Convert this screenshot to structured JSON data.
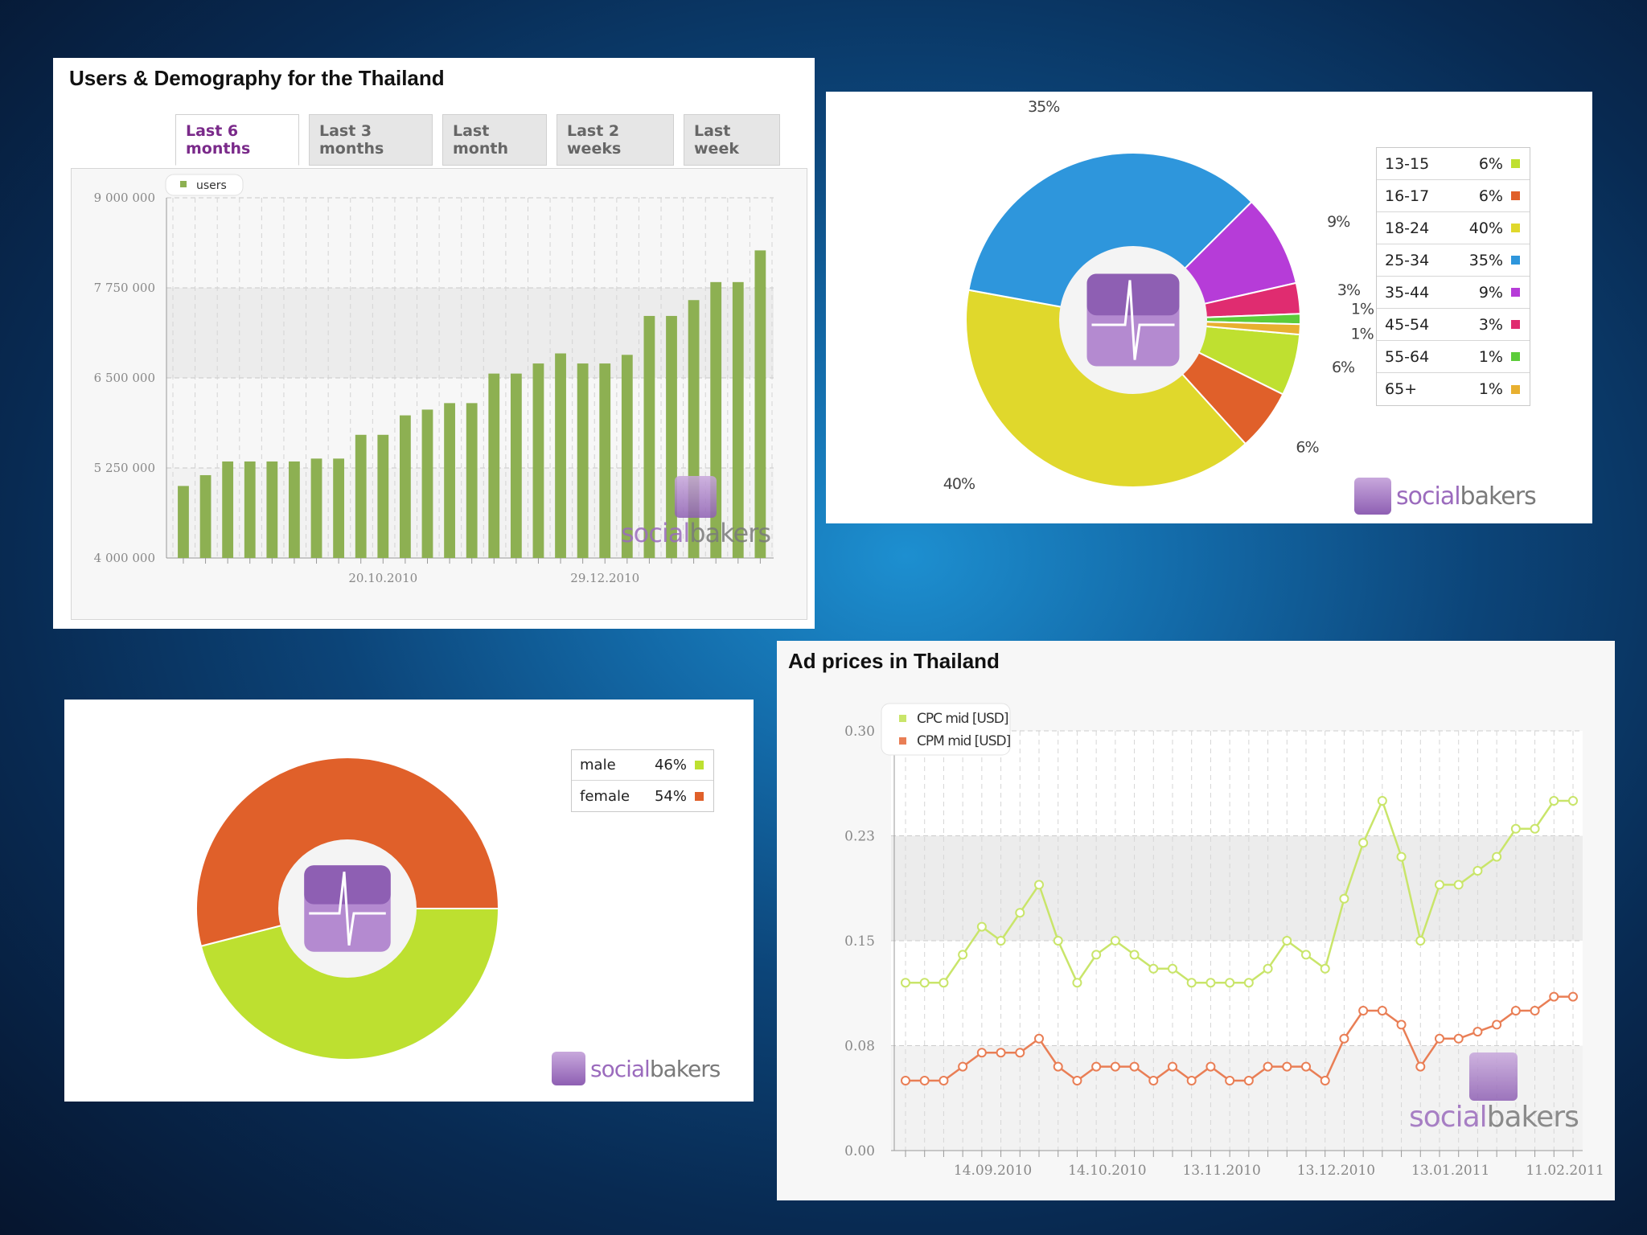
{
  "brand": {
    "part1": "social",
    "part2": "bakers"
  },
  "panel_users": {
    "title": "Users & Demography for the Thailand",
    "tabs": [
      {
        "label": "Last 6 months",
        "active": true
      },
      {
        "label": "Last 3 months",
        "active": false
      },
      {
        "label": "Last month",
        "active": false
      },
      {
        "label": "Last 2 weeks",
        "active": false
      },
      {
        "label": "Last week",
        "active": false
      }
    ]
  },
  "panel_age": {},
  "panel_gender": {},
  "panel_ads": {
    "title": "Ad prices in Thailand"
  },
  "colors": {
    "bar": "#8db052",
    "cpc": "#c9e56a",
    "cpm": "#e97e55"
  },
  "chart_data": [
    {
      "type": "bar",
      "legend": [
        "users"
      ],
      "series": [
        {
          "name": "users",
          "values": [
            5000000,
            5150000,
            5340000,
            5340000,
            5340000,
            5340000,
            5380000,
            5380000,
            5710000,
            5710000,
            5980000,
            6060000,
            6150000,
            6150000,
            6560000,
            6560000,
            6700000,
            6840000,
            6700000,
            6700000,
            6820000,
            7360000,
            7360000,
            7580000,
            7830000,
            7830000,
            8270000
          ]
        }
      ],
      "ylim": [
        4000000,
        9000000
      ],
      "yticks": [
        "4 000 000",
        "5 250 000",
        "6 500 000",
        "7 750 000",
        "9 000 000"
      ],
      "xtick_labels": [
        "20.10.2010",
        "29.12.2010"
      ],
      "grid": true
    },
    {
      "type": "pie",
      "labels": [
        "13-15",
        "16-17",
        "18-24",
        "25-34",
        "35-44",
        "45-54",
        "55-64",
        "65+"
      ],
      "values": [
        6,
        6,
        40,
        35,
        9,
        3,
        1,
        1
      ],
      "value_labels": [
        "6%",
        "6%",
        "40%",
        "35%",
        "9%",
        "3%",
        "1%",
        "1%"
      ],
      "colors": [
        "#bfe030",
        "#e0602a",
        "#e0d82c",
        "#2e96dc",
        "#b63cd8",
        "#e02c70",
        "#5ccc3a",
        "#e8b030"
      ]
    },
    {
      "type": "pie",
      "labels": [
        "male",
        "female"
      ],
      "values": [
        46,
        54
      ],
      "value_labels": [
        "46%",
        "54%"
      ],
      "colors": [
        "#bde030",
        "#e0602a"
      ]
    },
    {
      "type": "line",
      "legend": [
        "CPC mid [USD]",
        "CPM mid [USD]"
      ],
      "series": [
        {
          "name": "CPC mid [USD]",
          "values": [
            0.12,
            0.12,
            0.12,
            0.14,
            0.16,
            0.15,
            0.17,
            0.19,
            0.15,
            0.12,
            0.14,
            0.15,
            0.14,
            0.13,
            0.13,
            0.12,
            0.12,
            0.12,
            0.12,
            0.13,
            0.15,
            0.14,
            0.13,
            0.18,
            0.22,
            0.25,
            0.21,
            0.15,
            0.19,
            0.19,
            0.2,
            0.21,
            0.23,
            0.23,
            0.25,
            0.25
          ]
        },
        {
          "name": "CPM mid [USD]",
          "values": [
            0.05,
            0.05,
            0.05,
            0.06,
            0.07,
            0.07,
            0.07,
            0.08,
            0.06,
            0.05,
            0.06,
            0.06,
            0.06,
            0.05,
            0.06,
            0.05,
            0.06,
            0.05,
            0.05,
            0.06,
            0.06,
            0.06,
            0.05,
            0.08,
            0.1,
            0.1,
            0.09,
            0.06,
            0.08,
            0.08,
            0.085,
            0.09,
            0.1,
            0.1,
            0.11,
            0.11
          ]
        }
      ],
      "ylim": [
        0.0,
        0.3
      ],
      "yticks": [
        "0.00",
        "0.08",
        "0.15",
        "0.23",
        "0.30"
      ],
      "xtick_labels": [
        "14.09.2010",
        "14.10.2010",
        "13.11.2010",
        "13.12.2010",
        "13.01.2011",
        "11.02.2011"
      ],
      "grid": true
    }
  ]
}
